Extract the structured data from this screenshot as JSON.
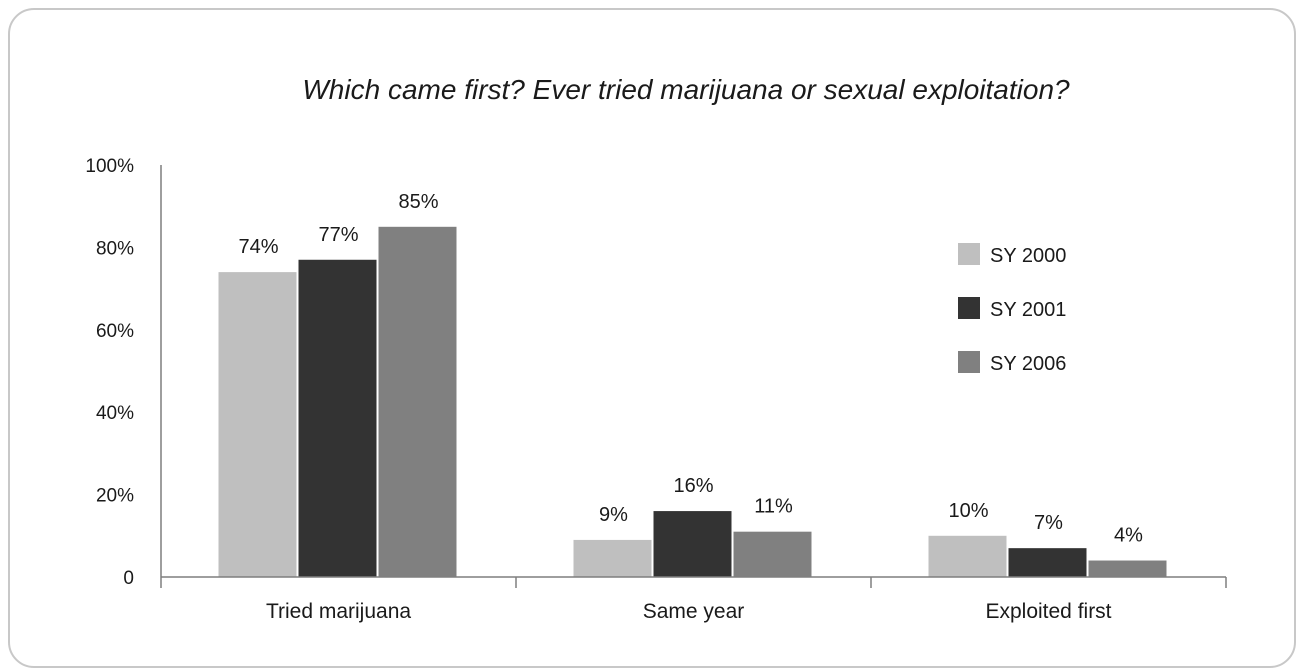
{
  "chart_data": {
    "type": "bar",
    "title": "Which came first? Ever tried marijuana or sexual exploitation?",
    "xlabel": "",
    "ylabel": "",
    "categories": [
      "Tried marijuana",
      "Same year",
      "Exploited first"
    ],
    "series": [
      {
        "name": "SY 2000",
        "values": [
          74,
          9,
          10
        ],
        "labels": [
          "74%",
          "9%",
          "10%"
        ],
        "color": "#bfbfbf"
      },
      {
        "name": "SY 2001",
        "values": [
          77,
          16,
          7
        ],
        "labels": [
          "77%",
          "16%",
          "7%"
        ],
        "color": "#333333"
      },
      {
        "name": "SY 2006",
        "values": [
          85,
          11,
          4
        ],
        "labels": [
          "85%",
          "11%",
          "4%"
        ],
        "color": "#808080"
      }
    ],
    "ylim": [
      0,
      100
    ],
    "yticks": [
      0,
      20,
      40,
      60,
      80,
      100
    ],
    "ytick_labels": [
      "0",
      "20%",
      "40%",
      "60%",
      "80%",
      "100%"
    ],
    "grid": false,
    "legend_position": "right"
  }
}
